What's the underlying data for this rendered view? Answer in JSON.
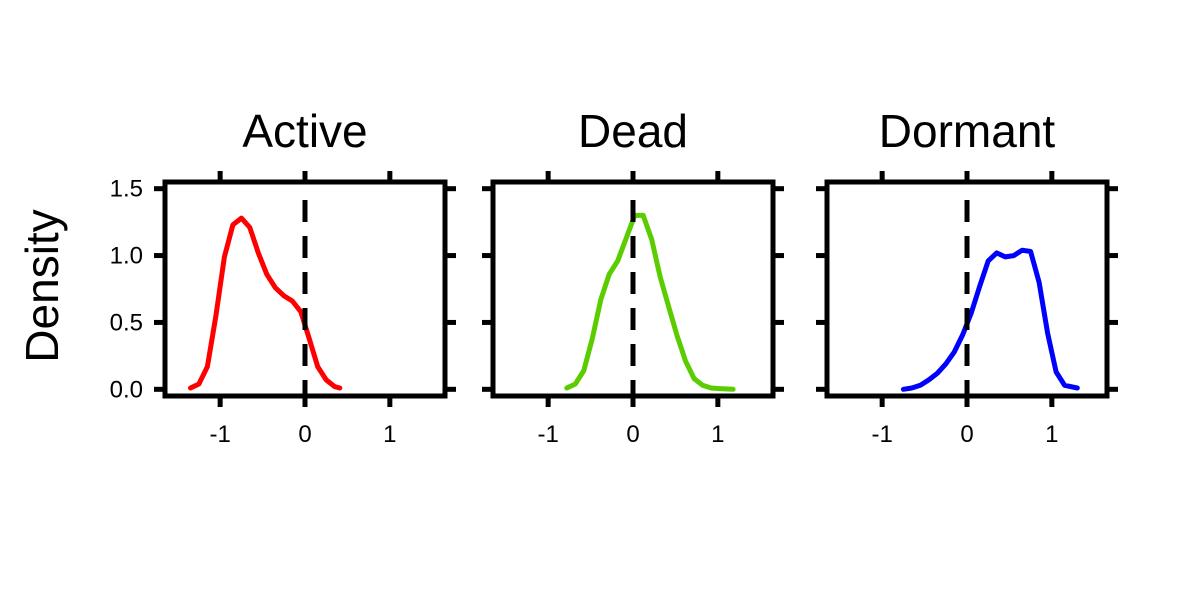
{
  "chart_data": {
    "type": "line",
    "ylabel": "Density",
    "xlim": [
      -1.65,
      1.65
    ],
    "ylim": [
      -0.05,
      1.55
    ],
    "x_ticks": [
      -1,
      0,
      1
    ],
    "x_tick_labels": [
      "-1",
      "0",
      "1"
    ],
    "y_ticks": [
      0,
      0.5,
      1.0,
      1.5
    ],
    "y_tick_labels": [
      "0.0",
      "0.5",
      "1.0",
      "1.5"
    ],
    "reference_line_x": 0,
    "grid": false,
    "panels": [
      {
        "title": "Active",
        "color": "#ff0000",
        "x": [
          -1.35,
          -1.25,
          -1.15,
          -1.05,
          -0.95,
          -0.85,
          -0.75,
          -0.65,
          -0.55,
          -0.45,
          -0.35,
          -0.25,
          -0.15,
          -0.05,
          0.05,
          0.15,
          0.25,
          0.35,
          0.41
        ],
        "y": [
          0.01,
          0.04,
          0.17,
          0.55,
          0.99,
          1.23,
          1.28,
          1.21,
          1.02,
          0.86,
          0.76,
          0.7,
          0.66,
          0.58,
          0.38,
          0.17,
          0.07,
          0.02,
          0.01
        ]
      },
      {
        "title": "Dead",
        "color": "#5acc00",
        "x": [
          -0.78,
          -0.68,
          -0.58,
          -0.48,
          -0.38,
          -0.28,
          -0.18,
          -0.08,
          0.02,
          0.12,
          0.22,
          0.32,
          0.42,
          0.52,
          0.62,
          0.72,
          0.82,
          0.92,
          1.02,
          1.18
        ],
        "y": [
          0.01,
          0.04,
          0.14,
          0.38,
          0.67,
          0.86,
          0.96,
          1.13,
          1.3,
          1.3,
          1.12,
          0.84,
          0.62,
          0.4,
          0.21,
          0.08,
          0.03,
          0.01,
          0.005,
          0.0
        ]
      },
      {
        "title": "Dormant",
        "color": "#0000ff",
        "x": [
          -0.75,
          -0.65,
          -0.55,
          -0.45,
          -0.35,
          -0.25,
          -0.15,
          -0.05,
          0.05,
          0.15,
          0.25,
          0.35,
          0.45,
          0.55,
          0.65,
          0.75,
          0.85,
          0.95,
          1.05,
          1.15,
          1.3
        ],
        "y": [
          0.0,
          0.01,
          0.03,
          0.07,
          0.12,
          0.19,
          0.28,
          0.41,
          0.57,
          0.77,
          0.96,
          1.02,
          0.99,
          1.0,
          1.04,
          1.03,
          0.8,
          0.42,
          0.13,
          0.03,
          0.01
        ]
      }
    ]
  }
}
